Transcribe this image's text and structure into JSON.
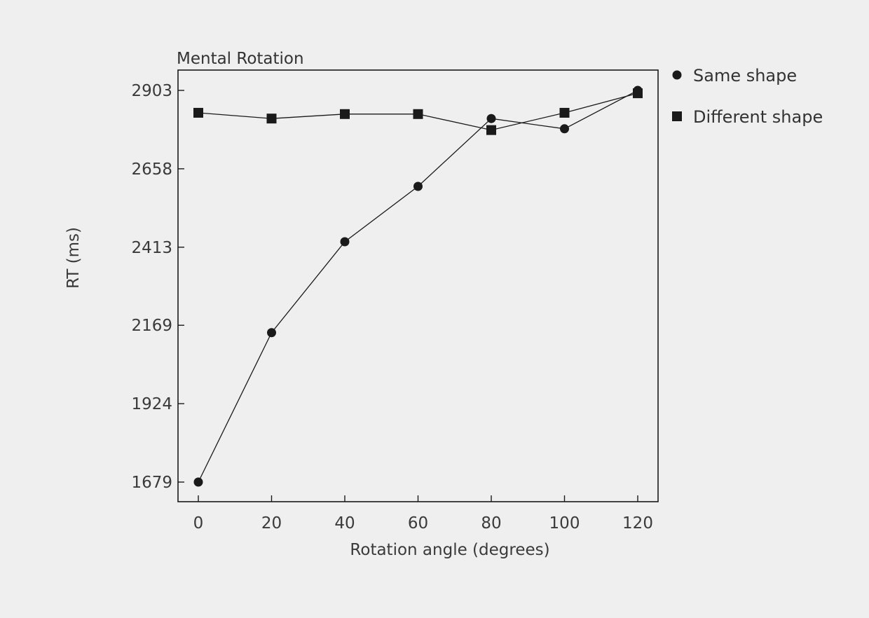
{
  "chart_data": {
    "type": "line",
    "title": "Mental Rotation",
    "xlabel": "Rotation angle (degrees)",
    "ylabel": "RT (ms)",
    "x": [
      0,
      20,
      40,
      60,
      80,
      100,
      120
    ],
    "x_ticks": [
      0,
      20,
      40,
      60,
      80,
      100,
      120
    ],
    "y_ticks": [
      1679,
      1924,
      2169,
      2413,
      2658,
      2903
    ],
    "xlim": [
      -5,
      125
    ],
    "ylim": [
      1620,
      2970
    ],
    "grid": false,
    "legend_position": "outside-top-right",
    "series": [
      {
        "name": "Same shape",
        "marker": "circle",
        "values": [
          1679,
          2146,
          2430,
          2603,
          2815,
          2783,
          2903
        ]
      },
      {
        "name": "Different shape",
        "marker": "square",
        "values": [
          2833,
          2815,
          2829,
          2829,
          2779,
          2833,
          2894
        ]
      }
    ]
  },
  "colors": {
    "background": "#efefef",
    "line": "#1a1a1a",
    "text": "#333333"
  }
}
